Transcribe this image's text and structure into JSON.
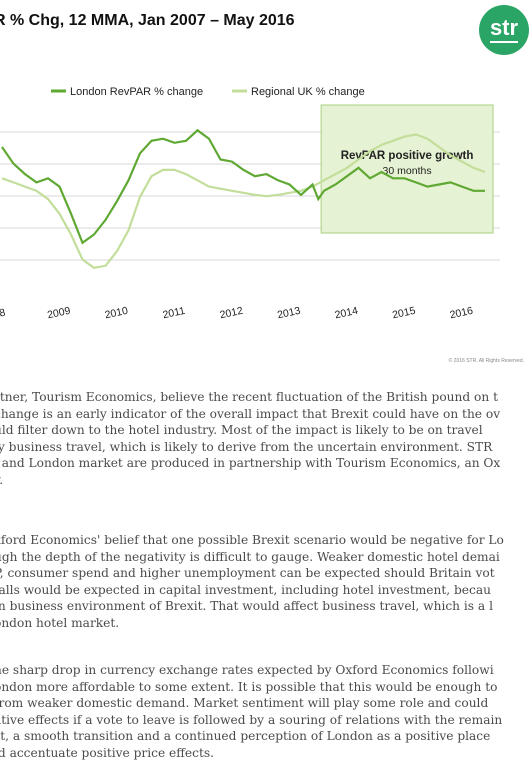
{
  "chart": {
    "title": "R % Chg, 12 MMA, Jan 2007 – May 2016",
    "logo_text": "str",
    "legend": [
      "London RevPAR % change",
      "Regional UK % change"
    ],
    "annotation_title": "RevPAR positive growth",
    "annotation_sub": "30 months",
    "copyright": "© 2016 STR. All Rights Reserved."
  },
  "chart_data": {
    "type": "line",
    "title": "R % Chg, 12 MMA, Jan 2007 – May 2016",
    "x_tick_labels": [
      "8",
      "2009",
      "2010",
      "2011",
      "2012",
      "2013",
      "2014",
      "2015",
      "2016"
    ],
    "colors": {
      "london": "#5fa832",
      "regional": "#c2de9a",
      "highlight": "#e6f2d4",
      "highlight_border": "#a8d27c"
    },
    "series": [
      {
        "name": "London RevPAR % change",
        "x": [
          2008.0,
          2008.2,
          2008.4,
          2008.6,
          2008.8,
          2009.0,
          2009.2,
          2009.4,
          2009.6,
          2009.8,
          2010.0,
          2010.2,
          2010.4,
          2010.6,
          2010.8,
          2011.0,
          2011.2,
          2011.4,
          2011.6,
          2011.8,
          2012.0,
          2012.2,
          2012.4,
          2012.6,
          2012.8,
          2013.0,
          2013.2,
          2013.4,
          2013.5,
          2013.6,
          2013.8,
          2014.0,
          2014.2,
          2014.4,
          2014.6,
          2014.8,
          2015.0,
          2015.2,
          2015.4,
          2015.6,
          2015.8,
          2016.0,
          2016.2,
          2016.4
        ],
        "y": [
          8.0,
          4.0,
          1.5,
          -0.5,
          0.5,
          -1.5,
          -8.0,
          -15.0,
          -13.0,
          -9.5,
          -5.0,
          0.0,
          6.5,
          9.5,
          10.0,
          9.0,
          9.5,
          12.0,
          10.0,
          5.0,
          4.5,
          2.5,
          1.0,
          1.5,
          0.0,
          -1.0,
          -3.5,
          -1.0,
          -4.5,
          -2.5,
          -1.0,
          1.0,
          3.0,
          0.5,
          2.0,
          0.5,
          0.5,
          -0.5,
          -1.5,
          -1.0,
          -0.5,
          -1.5,
          -2.5,
          -2.5
        ]
      },
      {
        "name": "Regional UK % change",
        "x": [
          2008.0,
          2008.2,
          2008.4,
          2008.6,
          2008.8,
          2009.0,
          2009.2,
          2009.4,
          2009.6,
          2009.8,
          2010.0,
          2010.2,
          2010.4,
          2010.6,
          2010.8,
          2011.0,
          2011.2,
          2011.4,
          2011.6,
          2011.8,
          2012.0,
          2012.2,
          2012.4,
          2012.6,
          2012.8,
          2013.0,
          2013.2,
          2013.4,
          2013.6,
          2013.8,
          2014.0,
          2014.2,
          2014.4,
          2014.6,
          2014.8,
          2015.0,
          2015.2,
          2015.4,
          2015.6,
          2015.8,
          2016.0,
          2016.2,
          2016.4
        ],
        "y": [
          0.5,
          -0.5,
          -1.5,
          -2.5,
          -4.5,
          -8.0,
          -13.0,
          -19.0,
          -21.0,
          -20.5,
          -17.0,
          -12.0,
          -4.0,
          1.0,
          2.5,
          2.5,
          1.5,
          0.0,
          -1.5,
          -2.0,
          -2.5,
          -3.0,
          -3.5,
          -3.8,
          -3.5,
          -3.0,
          -2.5,
          -1.5,
          0.0,
          1.5,
          3.0,
          5.0,
          7.0,
          8.5,
          9.5,
          10.5,
          11.0,
          10.0,
          8.0,
          6.0,
          4.5,
          3.0,
          2.0
        ]
      }
    ],
    "ylim": [
      -22,
      14
    ],
    "highlight_range": [
      2013.55,
      2016.4
    ]
  },
  "paragraphs": [
    [
      "rtner, Tourism Economics, believe the recent fluctuation of the British pound on t",
      "change is an early indicator of the overall impact that Brexit could have on the ov",
      "uld filter down to the hotel industry. Most of the impact is likely to be on travel",
      "ly business travel, which is likely to derive from the uncertain environment. STR",
      ". and London market are produced in partnership with Tourism Economics, an Ox",
      "y."
    ],
    [
      "xford Economics' belief that one possible Brexit scenario would be negative for Lo",
      "ugh the depth of the negativity is difficult to gauge. Weaker domestic hotel demai",
      "P, consumer spend and higher unemployment can be expected should Britain vot",
      "falls would be expected in capital investment, including hotel investment, becau",
      "in business environment of Brexit. That would affect business travel, which is a l",
      "ondon hotel market."
    ],
    [
      "he sharp drop in currency exchange rates expected by Oxford Economics followi",
      "ondon more affordable to some extent. It is possible that this would be enough to",
      "from weaker domestic demand. Market sentiment will play some role and could",
      "ative effects if a vote to leave is followed by a souring of relations with the remain",
      "st, a smooth transition and a continued perception of London as a positive place",
      "ld accentuate positive price effects."
    ]
  ]
}
